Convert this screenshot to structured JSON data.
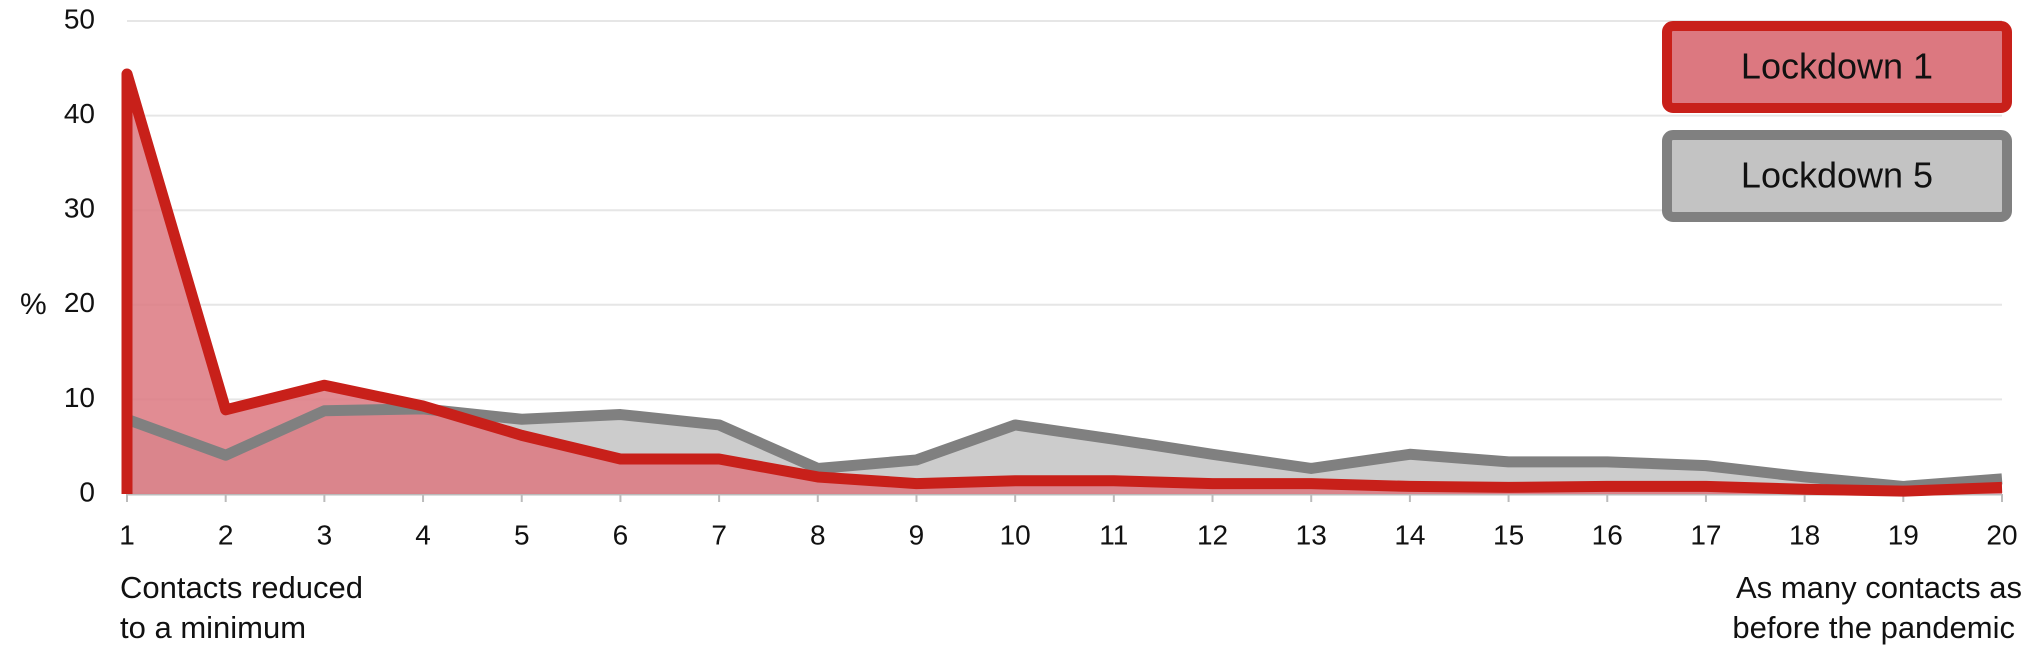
{
  "chart_data": {
    "type": "area",
    "y_label": "%",
    "left_note": [
      "Contacts reduced",
      "to a minimum"
    ],
    "right_note": [
      "As many contacts as",
      "before the pandemic"
    ],
    "x": [
      1,
      2,
      3,
      4,
      5,
      6,
      7,
      8,
      9,
      10,
      11,
      12,
      13,
      14,
      15,
      16,
      17,
      18,
      19,
      20
    ],
    "series": [
      {
        "name": "Lockdown 5",
        "color": "#808080",
        "fill": "#c3c3c3",
        "values": [
          7.9,
          4.1,
          8.8,
          9.0,
          7.9,
          8.4,
          7.3,
          2.7,
          3.6,
          7.3,
          5.8,
          4.2,
          2.7,
          4.2,
          3.4,
          3.4,
          3.0,
          1.8,
          0.8,
          1.6
        ]
      },
      {
        "name": "Lockdown 1",
        "color": "#c8201a",
        "fill": "#dc7880",
        "values": [
          44.4,
          8.9,
          11.5,
          9.3,
          6.2,
          3.7,
          3.7,
          1.8,
          1.1,
          1.4,
          1.4,
          1.1,
          1.1,
          0.8,
          0.7,
          0.8,
          0.8,
          0.5,
          0.3,
          0.7
        ]
      }
    ],
    "legend_order": [
      1,
      0
    ],
    "xlim": [
      1,
      20
    ],
    "xticks": [
      1,
      2,
      3,
      4,
      5,
      6,
      7,
      8,
      9,
      10,
      11,
      12,
      13,
      14,
      15,
      16,
      17,
      18,
      19,
      20
    ],
    "ylim": [
      0,
      50
    ],
    "yticks": [
      0,
      10,
      20,
      30,
      40,
      50
    ],
    "grid": true
  }
}
